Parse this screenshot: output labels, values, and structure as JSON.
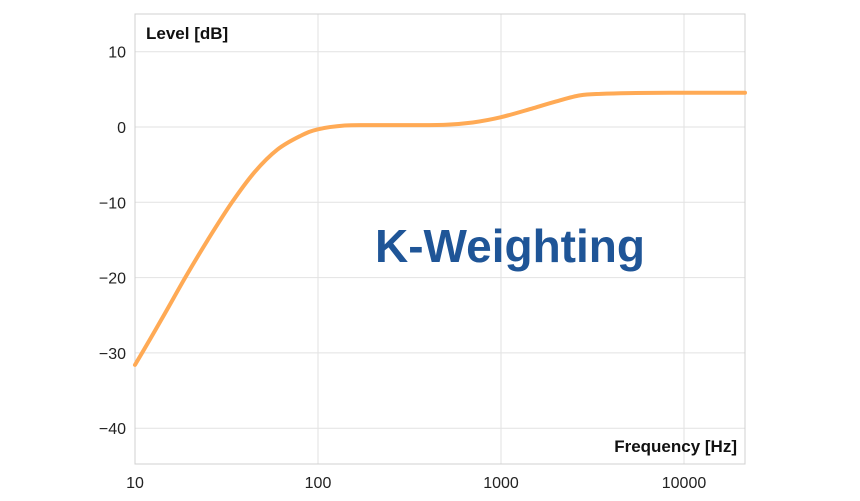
{
  "chart_data": {
    "type": "line",
    "title": "K-Weighting",
    "xlabel": "Frequency [Hz]",
    "ylabel": "Level [dB]",
    "xscale": "log",
    "xlim": [
      10,
      22000
    ],
    "ylim": [
      -45,
      15
    ],
    "x_ticks": [
      10,
      100,
      1000,
      10000
    ],
    "x_tick_labels": [
      "10",
      "100",
      "1000",
      "10000"
    ],
    "y_ticks": [
      10,
      0,
      -10,
      -20,
      -30,
      -40
    ],
    "y_tick_labels": [
      "10",
      "0",
      "−10",
      "−20",
      "−30",
      "−40"
    ],
    "grid": true,
    "legend": null,
    "series": [
      {
        "name": "K-Weighting",
        "color": "#ffaa55",
        "x": [
          10,
          14,
          18.8,
          25,
          33.9,
          45,
          60,
          80,
          100,
          140,
          200,
          300,
          500,
          700,
          1000,
          1500,
          2000,
          2700,
          3500,
          5000,
          10000,
          22000
        ],
        "y": [
          -31.6,
          -25.5,
          -20.0,
          -15.0,
          -10.0,
          -6.0,
          -3.0,
          -1.2,
          -0.3,
          0.2,
          0.25,
          0.25,
          0.3,
          0.6,
          1.3,
          2.5,
          3.4,
          4.2,
          4.4,
          4.5,
          4.55,
          4.55
        ]
      }
    ]
  },
  "colors": {
    "curve": "#ffaa55",
    "title": "#1f5597",
    "grid": "#e2e2e2",
    "border": "#d0d0d0"
  }
}
